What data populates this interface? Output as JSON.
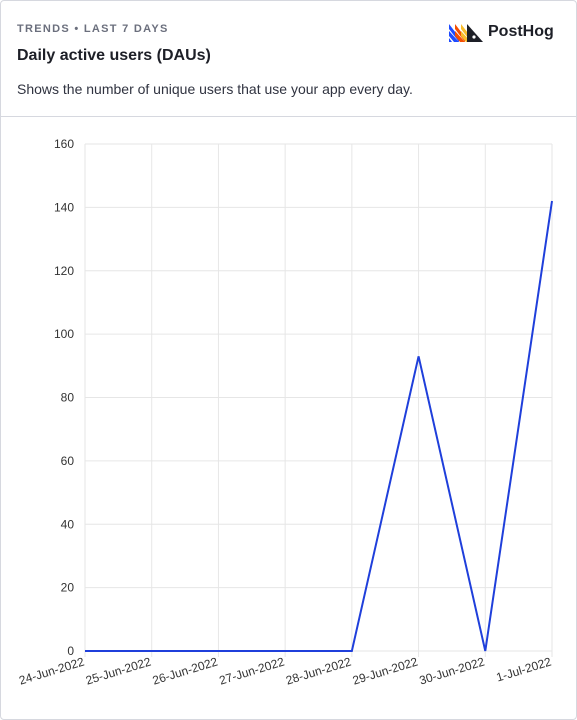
{
  "header": {
    "kicker": "TRENDS • LAST 7 DAYS",
    "title": "Daily active users (DAUs)",
    "subtitle": "Shows the number of unique users that use your app every day.",
    "logo_text": "PostHog"
  },
  "colors": {
    "line": "#1f3fdb",
    "grid": "#e6e6e6",
    "logo_blue": "#1d4aff",
    "logo_orange": "#f54e00",
    "logo_yellow": "#f9bd2b"
  },
  "chart_data": {
    "type": "line",
    "categories": [
      "24-Jun-2022",
      "25-Jun-2022",
      "26-Jun-2022",
      "27-Jun-2022",
      "28-Jun-2022",
      "29-Jun-2022",
      "30-Jun-2022",
      "1-Jul-2022"
    ],
    "series": [
      {
        "values": [
          0,
          0,
          0,
          0,
          0,
          93,
          0,
          142
        ]
      }
    ],
    "yticks": [
      0,
      20,
      40,
      60,
      80,
      100,
      120,
      140,
      160
    ],
    "ylim": [
      0,
      160
    ],
    "grid": true,
    "legend": "none"
  }
}
